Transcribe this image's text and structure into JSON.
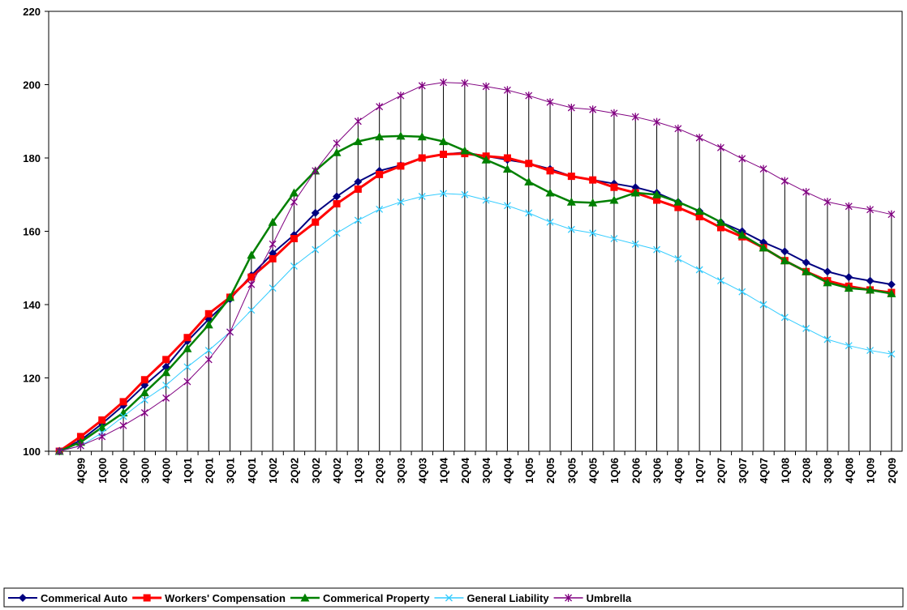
{
  "chart_data": {
    "type": "line",
    "categories": [
      null,
      "4Q99",
      "1Q00",
      "2Q00",
      "3Q00",
      "4Q00",
      "1Q01",
      "2Q01",
      "3Q01",
      "4Q01",
      "1Q02",
      "2Q02",
      "3Q02",
      "4Q02",
      "1Q03",
      "2Q03",
      "3Q03",
      "4Q03",
      "1Q04",
      "2Q04",
      "3Q04",
      "4Q04",
      "1Q05",
      "2Q05",
      "3Q05",
      "4Q05",
      "1Q06",
      "2Q06",
      "3Q06",
      "4Q06",
      "1Q07",
      "2Q07",
      "3Q07",
      "4Q07",
      "1Q08",
      "2Q08",
      "3Q08",
      "4Q08",
      "1Q09",
      "2Q09"
    ],
    "series": [
      {
        "name": "Commerical Auto",
        "color": "#000080",
        "marker": "diamond",
        "values": [
          100,
          103,
          107.5,
          112.5,
          118,
          123,
          130,
          136,
          141.5,
          148,
          154,
          159,
          165,
          169.5,
          173.5,
          176.5,
          178,
          180,
          181,
          181.5,
          180.5,
          179.5,
          178.5,
          177,
          175,
          174,
          173,
          172,
          170.5,
          168,
          165.5,
          162.5,
          160,
          157,
          154.5,
          151.5,
          149,
          147.5,
          146.5,
          145.5
        ]
      },
      {
        "name": "Workers' Compensation",
        "color": "#ff0000",
        "marker": "square",
        "values": [
          100,
          104,
          108.5,
          113.5,
          119.5,
          125,
          131,
          137.5,
          142,
          147.5,
          152.5,
          158,
          162.5,
          167.5,
          171.5,
          175.5,
          177.8,
          180,
          181,
          181.2,
          180.5,
          180,
          178.5,
          176.5,
          175,
          174,
          172,
          170.5,
          168.5,
          166.5,
          164,
          161,
          158.5,
          155.5,
          152,
          149,
          146.5,
          145,
          144,
          143.3
        ]
      },
      {
        "name": "Commerical Property",
        "color": "#008000",
        "marker": "triangle",
        "values": [
          100,
          102.5,
          106.5,
          110.5,
          116,
          121.5,
          128,
          134.5,
          142,
          153.5,
          162.5,
          170.5,
          176.5,
          181.5,
          184.5,
          185.8,
          186,
          185.8,
          184.5,
          182,
          179.5,
          177,
          173.5,
          170.5,
          168,
          167.8,
          168.5,
          170.5,
          170,
          168,
          165.5,
          162.5,
          159,
          155.5,
          152,
          149,
          146,
          144.5,
          144,
          143
        ]
      },
      {
        "name": "General Liability",
        "color": "#33ccff",
        "marker": "x",
        "values": [
          100,
          101.5,
          105,
          109.5,
          114,
          118,
          123,
          127.5,
          132.5,
          138.5,
          144.5,
          150.5,
          155,
          159.5,
          163,
          166,
          168,
          169.5,
          170.3,
          170,
          168.5,
          167,
          165,
          162.5,
          160.5,
          159.5,
          158,
          156.5,
          155,
          152.5,
          149.5,
          146.5,
          143.5,
          140,
          136.5,
          133.5,
          130.5,
          128.8,
          127.5,
          126.5
        ]
      },
      {
        "name": "Umbrella",
        "color": "#800080",
        "marker": "star",
        "values": [
          100,
          101.5,
          104,
          107,
          110.5,
          114.5,
          119,
          125,
          132.5,
          145.5,
          156.5,
          168,
          176.5,
          184,
          190,
          194,
          197,
          199.7,
          200.6,
          200.4,
          199.5,
          198.5,
          197,
          195.2,
          193.7,
          193.2,
          192.2,
          191.2,
          189.8,
          188,
          185.5,
          182.8,
          179.8,
          177,
          173.7,
          170.7,
          168,
          166.8,
          165.9,
          164.6
        ]
      }
    ],
    "ylim": [
      100,
      220
    ],
    "yticks": [
      100,
      120,
      140,
      160,
      180,
      200,
      220
    ],
    "drop_lines": true,
    "legend": "bottom"
  }
}
